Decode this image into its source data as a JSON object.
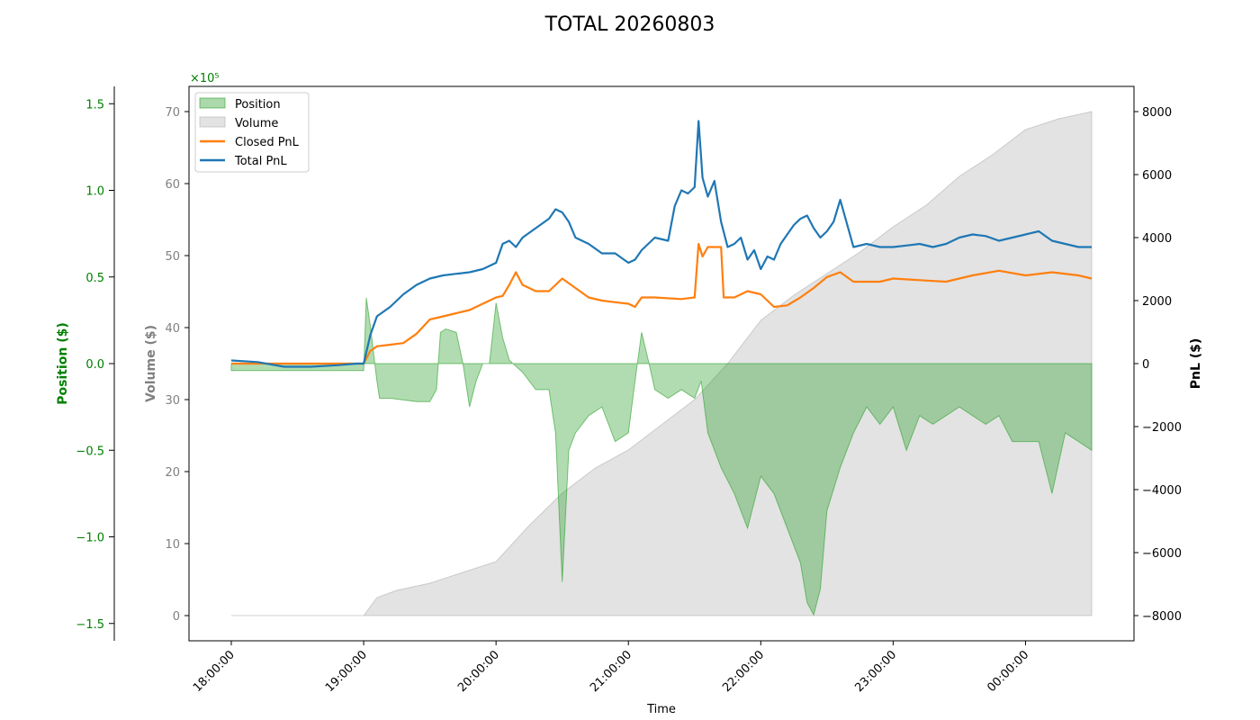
{
  "chart_data": {
    "type": "line",
    "title": "TOTAL 20260803",
    "xlabel": "Time",
    "x_ticks": [
      "18:00:00",
      "19:00:00",
      "20:00:00",
      "21:00:00",
      "22:00:00",
      "23:00:00",
      "00:00:00"
    ],
    "x_range_hours": [
      18,
      24.5
    ],
    "axes": {
      "position": {
        "label": "Position ($)",
        "scale_label": "×10⁵",
        "ylim": [
          -1.6,
          1.6
        ],
        "ticks": [
          -1.5,
          -1.0,
          -0.5,
          0.0,
          0.5,
          1.0,
          1.5
        ],
        "tick_labels": [
          "−1.5",
          "−1.0",
          "−0.5",
          "0.0",
          "0.5",
          "1.0",
          "1.5"
        ],
        "color": "#008000"
      },
      "volume": {
        "label": "Volume ($)",
        "ylim": [
          -3.5,
          73.5
        ],
        "ticks": [
          0,
          10,
          20,
          30,
          40,
          50,
          60,
          70
        ],
        "tick_labels": [
          "0",
          "10",
          "20",
          "30",
          "40",
          "50",
          "60",
          "70"
        ],
        "color": "#808080"
      },
      "pnl": {
        "label": "PnL ($)",
        "ylim": [
          -8800,
          8800
        ],
        "ticks": [
          -8000,
          -6000,
          -4000,
          -2000,
          0,
          2000,
          4000,
          6000,
          8000
        ],
        "tick_labels": [
          "−8000",
          "−6000",
          "−4000",
          "−2000",
          "0",
          "2000",
          "4000",
          "6000",
          "8000"
        ],
        "color": "#000000"
      }
    },
    "legend": {
      "placement": "top-left",
      "entries": [
        {
          "label": "Position",
          "kind": "patch",
          "color": "#2ca02c"
        },
        {
          "label": "Volume",
          "kind": "patch",
          "color": "#b0b0b0"
        },
        {
          "label": "Closed PnL",
          "kind": "line",
          "color": "#ff7f0e"
        },
        {
          "label": "Total PnL",
          "kind": "line",
          "color": "#1f77b4"
        }
      ]
    },
    "series": [
      {
        "name": "Position",
        "axis": "position",
        "style": "fill",
        "color": "#2ca02c",
        "x": [
          18.0,
          19.0,
          19.02,
          19.05,
          19.1,
          19.12,
          19.2,
          19.4,
          19.5,
          19.55,
          19.58,
          19.62,
          19.7,
          19.75,
          19.8,
          19.85,
          19.9,
          19.95,
          20.0,
          20.05,
          20.1,
          20.2,
          20.3,
          20.4,
          20.45,
          20.5,
          20.55,
          20.6,
          20.7,
          20.8,
          20.9,
          21.0,
          21.05,
          21.1,
          21.15,
          21.2,
          21.3,
          21.4,
          21.5,
          21.55,
          21.6,
          21.7,
          21.8,
          21.9,
          22.0,
          22.1,
          22.2,
          22.3,
          22.35,
          22.4,
          22.45,
          22.5,
          22.6,
          22.7,
          22.8,
          22.9,
          23.0,
          23.1,
          23.2,
          23.3,
          23.4,
          23.5,
          23.6,
          23.7,
          23.8,
          23.9,
          24.0,
          24.1,
          24.2,
          24.3,
          24.4,
          24.5
        ],
        "values": [
          -0.04,
          -0.04,
          0.38,
          0.22,
          -0.1,
          -0.2,
          -0.2,
          -0.22,
          -0.22,
          -0.15,
          0.18,
          0.2,
          0.18,
          0.0,
          -0.25,
          -0.1,
          0.0,
          0.0,
          0.35,
          0.15,
          0.02,
          -0.05,
          -0.15,
          -0.15,
          -0.4,
          -1.26,
          -0.5,
          -0.4,
          -0.3,
          -0.25,
          -0.45,
          -0.4,
          -0.1,
          0.18,
          0.02,
          -0.15,
          -0.2,
          -0.15,
          -0.2,
          -0.1,
          -0.4,
          -0.6,
          -0.75,
          -0.95,
          -0.65,
          -0.75,
          -0.95,
          -1.15,
          -1.38,
          -1.45,
          -1.3,
          -0.85,
          -0.6,
          -0.4,
          -0.25,
          -0.35,
          -0.25,
          -0.5,
          -0.3,
          -0.35,
          -0.3,
          -0.25,
          -0.3,
          -0.35,
          -0.3,
          -0.45,
          -0.45,
          -0.45,
          -0.75,
          -0.4,
          -0.45,
          -0.5
        ]
      },
      {
        "name": "Volume",
        "axis": "volume",
        "style": "fill",
        "color": "#b0b0b0",
        "x": [
          18.0,
          19.0,
          19.1,
          19.25,
          19.5,
          19.75,
          20.0,
          20.25,
          20.5,
          20.75,
          21.0,
          21.25,
          21.5,
          21.75,
          22.0,
          22.25,
          22.5,
          22.75,
          23.0,
          23.25,
          23.5,
          23.75,
          24.0,
          24.25,
          24.5
        ],
        "values": [
          0.0,
          0.0,
          2.5,
          3.5,
          4.5,
          6.0,
          7.5,
          12.5,
          17.0,
          20.5,
          23.0,
          26.5,
          30.0,
          35.0,
          41.0,
          44.5,
          47.5,
          50.5,
          54.0,
          57.0,
          61.0,
          64.0,
          67.5,
          69.0,
          70.0
        ]
      },
      {
        "name": "Closed PnL",
        "axis": "pnl",
        "style": "line",
        "color": "#ff7f0e",
        "x": [
          18.0,
          18.5,
          19.0,
          19.05,
          19.1,
          19.2,
          19.3,
          19.4,
          19.5,
          19.6,
          19.7,
          19.8,
          19.9,
          20.0,
          20.05,
          20.1,
          20.15,
          20.2,
          20.3,
          20.4,
          20.5,
          20.6,
          20.7,
          20.8,
          20.9,
          21.0,
          21.05,
          21.1,
          21.2,
          21.4,
          21.5,
          21.53,
          21.56,
          21.6,
          21.7,
          21.72,
          21.8,
          21.9,
          22.0,
          22.1,
          22.2,
          22.3,
          22.4,
          22.5,
          22.6,
          22.7,
          22.8,
          22.9,
          23.0,
          23.2,
          23.4,
          23.6,
          23.8,
          24.0,
          24.2,
          24.4,
          24.5
        ],
        "values": [
          0,
          0,
          0,
          400,
          550,
          600,
          650,
          950,
          1400,
          1500,
          1600,
          1700,
          1900,
          2100,
          2150,
          2500,
          2900,
          2500,
          2300,
          2300,
          2700,
          2400,
          2100,
          2000,
          1950,
          1900,
          1800,
          2100,
          2100,
          2050,
          2100,
          3800,
          3400,
          3700,
          3700,
          2100,
          2100,
          2300,
          2200,
          1800,
          1850,
          2100,
          2400,
          2750,
          2900,
          2600,
          2600,
          2600,
          2700,
          2650,
          2600,
          2800,
          2950,
          2800,
          2900,
          2800,
          2700
        ]
      },
      {
        "name": "Total PnL",
        "axis": "pnl",
        "style": "line",
        "color": "#1f77b4",
        "x": [
          18.0,
          18.2,
          18.4,
          18.6,
          18.8,
          18.95,
          19.0,
          19.05,
          19.1,
          19.2,
          19.3,
          19.4,
          19.5,
          19.6,
          19.7,
          19.8,
          19.9,
          20.0,
          20.05,
          20.1,
          20.15,
          20.2,
          20.3,
          20.4,
          20.45,
          20.5,
          20.55,
          20.6,
          20.7,
          20.8,
          20.9,
          21.0,
          21.05,
          21.1,
          21.2,
          21.3,
          21.35,
          21.4,
          21.45,
          21.5,
          21.53,
          21.56,
          21.6,
          21.65,
          21.7,
          21.75,
          21.8,
          21.85,
          21.9,
          21.95,
          22.0,
          22.05,
          22.1,
          22.15,
          22.2,
          22.25,
          22.3,
          22.35,
          22.4,
          22.45,
          22.5,
          22.55,
          22.6,
          22.7,
          22.8,
          22.9,
          23.0,
          23.1,
          23.2,
          23.3,
          23.4,
          23.5,
          23.6,
          23.7,
          23.8,
          23.9,
          24.0,
          24.1,
          24.2,
          24.3,
          24.4,
          24.5
        ],
        "values": [
          100,
          50,
          -100,
          -100,
          -50,
          0,
          0,
          900,
          1500,
          1800,
          2200,
          2500,
          2700,
          2800,
          2850,
          2900,
          3000,
          3200,
          3800,
          3900,
          3700,
          4000,
          4300,
          4600,
          4900,
          4800,
          4500,
          4000,
          3800,
          3500,
          3500,
          3200,
          3300,
          3600,
          4000,
          3900,
          5000,
          5500,
          5400,
          5600,
          7700,
          5900,
          5300,
          5800,
          4500,
          3700,
          3800,
          4000,
          3300,
          3600,
          3000,
          3400,
          3300,
          3800,
          4100,
          4400,
          4600,
          4700,
          4300,
          4000,
          4200,
          4500,
          5200,
          3700,
          3800,
          3700,
          3700,
          3750,
          3800,
          3700,
          3800,
          4000,
          4100,
          4050,
          3900,
          4000,
          4100,
          4200,
          3900,
          3800,
          3700,
          3700
        ]
      }
    ]
  }
}
